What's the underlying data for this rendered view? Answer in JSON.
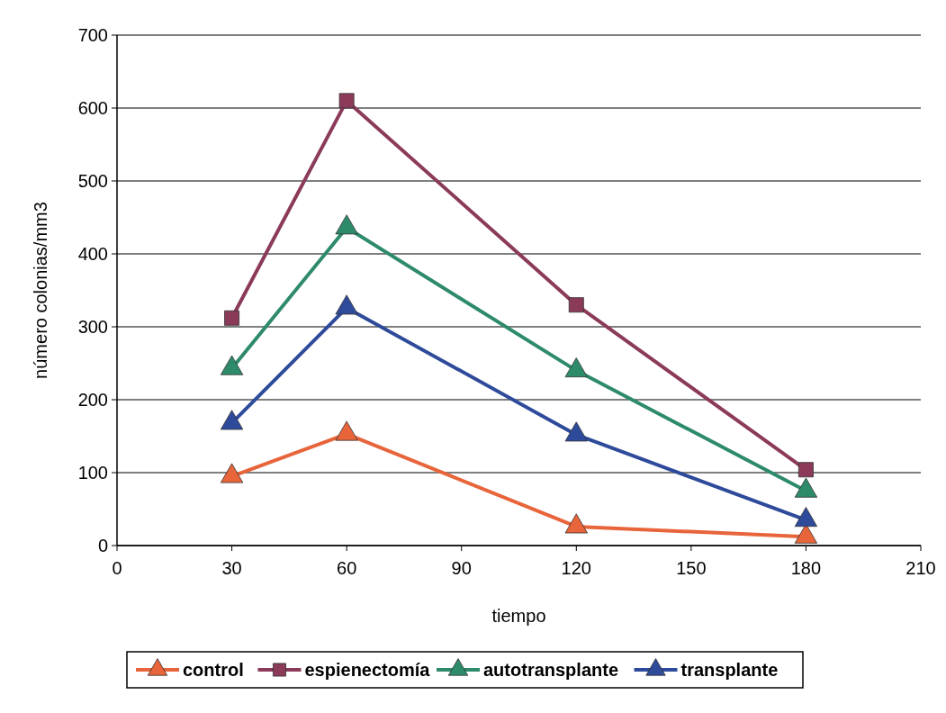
{
  "chart_data": {
    "type": "line",
    "xlabel": "tiempo",
    "ylabel": "número colonias/mm3",
    "x": [
      30,
      60,
      120,
      180
    ],
    "xlim": [
      0,
      210
    ],
    "xticks": [
      0,
      30,
      60,
      90,
      120,
      150,
      180,
      210
    ],
    "ylim": [
      0,
      700
    ],
    "yticks": [
      0,
      100,
      200,
      300,
      400,
      500,
      600,
      700
    ],
    "grid": "y",
    "legend": "bottom",
    "line_style": "solid",
    "series": [
      {
        "name": "control",
        "color": "#e8643a",
        "marker": "triangle",
        "values": [
          95,
          153,
          26,
          12
        ]
      },
      {
        "name": "espienectomía",
        "color": "#8b3a5a",
        "marker": "square",
        "values": [
          312,
          610,
          330,
          104
        ]
      },
      {
        "name": "autotransplante",
        "color": "#2e8b6a",
        "marker": "triangle",
        "values": [
          243,
          436,
          240,
          75
        ]
      },
      {
        "name": "transplante",
        "color": "#2e4a9a",
        "marker": "triangle",
        "values": [
          168,
          326,
          152,
          35
        ]
      }
    ]
  }
}
